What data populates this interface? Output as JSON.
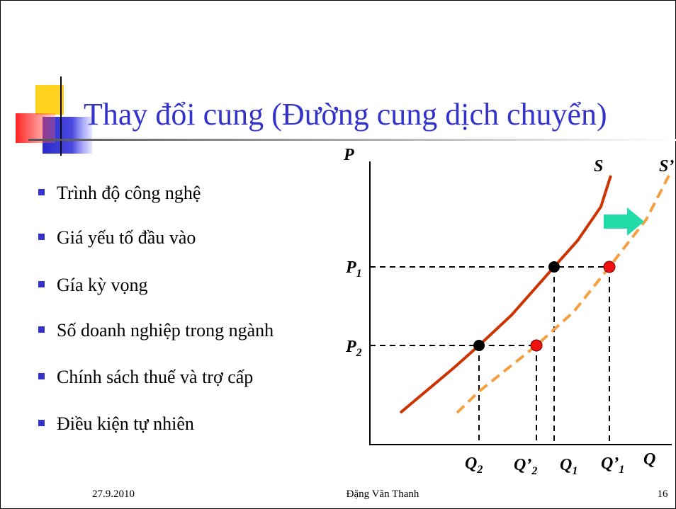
{
  "header": {
    "title": "Thay đổi cung (Đường cung dịch chuyển)"
  },
  "bullets": [
    "Trình độ công nghệ",
    "Giá yếu tố đầu vào",
    "Gía kỳ vọng",
    "Số doanh nghiệp trong ngành",
    "Chính sách thuế và trợ cấp",
    "Điều kiện tự nhiên"
  ],
  "diagram": {
    "y_axis": "P",
    "x_axis": "Q",
    "curves": [
      "S",
      "S’"
    ],
    "prices": [
      {
        "base": "P",
        "sub": "1"
      },
      {
        "base": "P",
        "sub": "2"
      }
    ],
    "quantities": [
      {
        "base": "Q",
        "sub": "2"
      },
      {
        "base": "Q’",
        "sub": "2"
      },
      {
        "base": "Q",
        "sub": "1"
      },
      {
        "base": "Q’",
        "sub": "1"
      }
    ]
  },
  "footer": {
    "date": "27.9.2010",
    "author": "Đặng Văn Thanh",
    "page": "16"
  }
}
